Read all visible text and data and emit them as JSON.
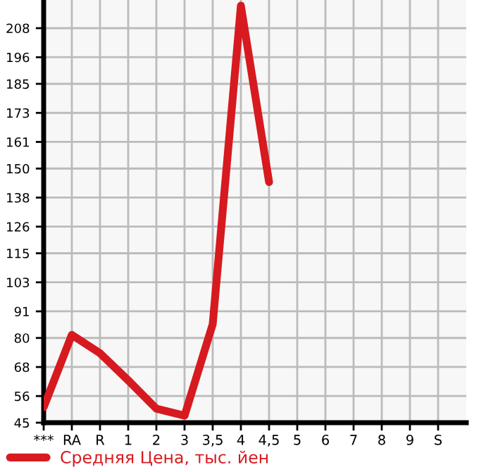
{
  "chart_data": {
    "type": "line",
    "categories": [
      "***",
      "RA",
      "R",
      "1",
      "2",
      "3",
      "3,5",
      "4",
      "4,5",
      "5",
      "6",
      "7",
      "8",
      "9",
      "S"
    ],
    "series": [
      {
        "name": "Средняя Цена, тыс. йен",
        "color": "#d71a1f",
        "values": [
          51.4,
          81.3,
          73.7,
          62.5,
          50.8,
          47.9,
          85.7,
          217.3,
          144.4,
          null,
          null,
          null,
          null,
          null,
          null
        ]
      }
    ],
    "ylim": [
      45,
      219.64
    ],
    "yticks": [
      45,
      56,
      68,
      80,
      91,
      103,
      115,
      126,
      138,
      150,
      161,
      173,
      185,
      196,
      208
    ],
    "grid": true,
    "legend": "bottom",
    "marker": "none",
    "line_style": "solid"
  }
}
